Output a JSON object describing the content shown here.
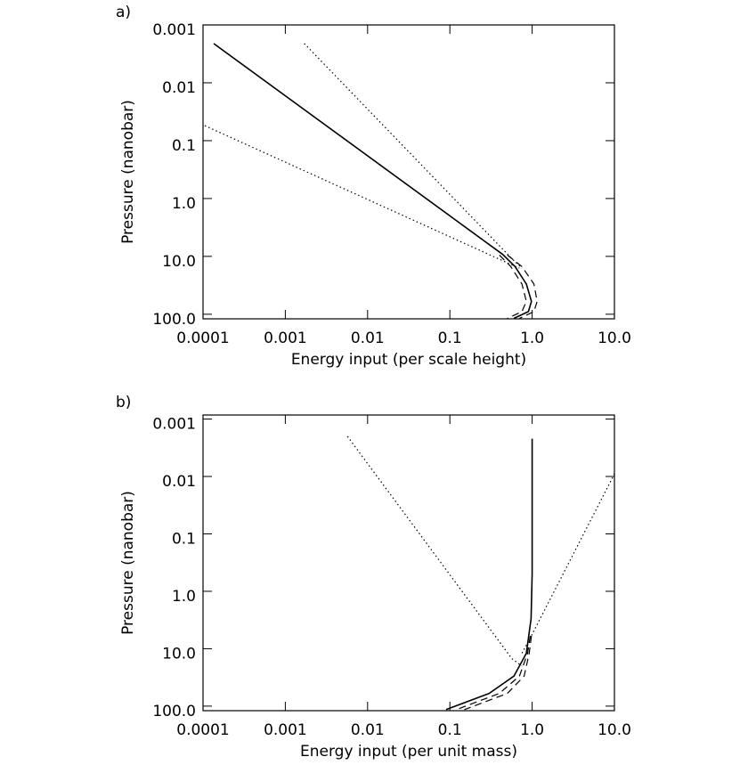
{
  "chart_data": [
    {
      "type": "line",
      "panel": "a)",
      "xlabel": "Energy input (per scale height)",
      "ylabel": "Pressure (nanobar)",
      "xscale": "log",
      "yscale": "log",
      "y_inverted": true,
      "xlim": [
        0.0001,
        10
      ],
      "ylim": [
        0.001,
        120
      ],
      "xticks": [
        0.0001,
        0.001,
        0.01,
        0.1,
        {
          "value": 1,
          "label": "1.0"
        },
        {
          "value": 10,
          "label": "10.0"
        }
      ],
      "yticks": [
        0.001,
        0.01,
        0.1,
        {
          "value": 1,
          "label": "1.0"
        },
        {
          "value": 10,
          "label": "10.0"
        },
        {
          "value": 100,
          "label": "100.0"
        }
      ],
      "series": [
        {
          "color": "#000000",
          "style": "solid",
          "x": [
            0.000135,
            0.44,
            0.62,
            0.85,
            0.98,
            0.9,
            0.6
          ],
          "values": [
            0.0021,
            9.3,
            15,
            30,
            60,
            90,
            118
          ]
        },
        {
          "color": "#000000",
          "style": "dashed",
          "x": [
            0.5,
            0.75,
            1.05,
            1.15,
            1.05,
            0.7
          ],
          "values": [
            9.5,
            15,
            30,
            60,
            90,
            118
          ]
        },
        {
          "color": "#000000",
          "style": "dashed",
          "x": [
            0.4,
            0.55,
            0.75,
            0.85,
            0.75,
            0.5
          ],
          "values": [
            9.5,
            15,
            30,
            60,
            90,
            118
          ]
        },
        {
          "color": "#000000",
          "style": "dotted",
          "x": [
            0.0017,
            0.57,
            0.75
          ],
          "values": [
            0.0021,
            11,
            16
          ]
        },
        {
          "color": "#000000",
          "style": "dotted",
          "x": [
            0.000105,
            0.39,
            0.7
          ],
          "values": [
            0.055,
            11,
            16
          ]
        }
      ]
    },
    {
      "type": "line",
      "panel": "b)",
      "xlabel": "Energy input (per unit mass)",
      "ylabel": "Pressure (nanobar)",
      "xscale": "log",
      "yscale": "log",
      "y_inverted": true,
      "xlim": [
        0.0001,
        10
      ],
      "ylim": [
        0.00085,
        120
      ],
      "xticks": [
        0.0001,
        0.001,
        0.01,
        0.1,
        {
          "value": 1,
          "label": "1.0"
        },
        {
          "value": 10,
          "label": "10.0"
        }
      ],
      "yticks": [
        0.001,
        0.01,
        0.1,
        {
          "value": 1,
          "label": "1.0"
        },
        {
          "value": 10,
          "label": "10.0"
        },
        {
          "value": 100,
          "label": "100.0"
        }
      ],
      "series": [
        {
          "color": "#000000",
          "style": "solid",
          "x": [
            1,
            1,
            0.97,
            0.85,
            0.6,
            0.3,
            0.09
          ],
          "values": [
            0.0022,
            0.5,
            3,
            12,
            30,
            60,
            115
          ]
        },
        {
          "color": "#000000",
          "style": "dashed",
          "x": [
            0.95,
            0.88,
            0.7,
            0.4,
            0.12
          ],
          "values": [
            6,
            12,
            30,
            60,
            115
          ]
        },
        {
          "color": "#000000",
          "style": "dashed",
          "x": [
            0.98,
            0.92,
            0.8,
            0.5,
            0.15
          ],
          "values": [
            6,
            12,
            30,
            60,
            115
          ]
        },
        {
          "color": "#000000",
          "style": "dotted",
          "x": [
            0.0057,
            0.57,
            0.75
          ],
          "values": [
            0.002,
            15,
            20
          ]
        },
        {
          "color": "#000000",
          "style": "dotted",
          "x": [
            10,
            0.9,
            0.75
          ],
          "values": [
            0.009,
            7.5,
            12
          ]
        }
      ]
    }
  ]
}
